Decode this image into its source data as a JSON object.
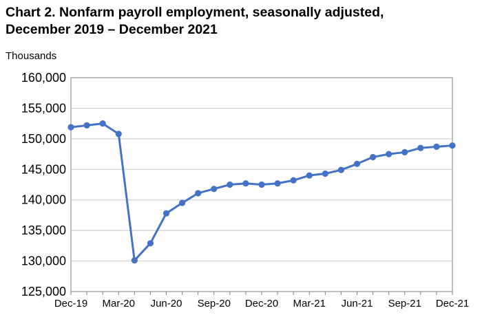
{
  "chart_data": {
    "type": "line",
    "title_line1": "Chart 2. Nonfarm payroll employment, seasonally adjusted,",
    "title_line2": "December 2019 – December 2021",
    "ylabel": "Thousands",
    "xlabel": "",
    "ylim": [
      125000,
      160000
    ],
    "y_ticks": [
      125000,
      130000,
      135000,
      140000,
      145000,
      150000,
      155000,
      160000
    ],
    "y_tick_labels": [
      "125,000",
      "130,000",
      "135,000",
      "140,000",
      "145,000",
      "150,000",
      "155,000",
      "160,000"
    ],
    "x_tick_labels": [
      "Dec-19",
      "Mar-20",
      "Jun-20",
      "Sep-20",
      "Dec-20",
      "Mar-21",
      "Jun-21",
      "Sep-21",
      "Dec-21"
    ],
    "x_tick_every": 3,
    "grid": true,
    "legend": "none",
    "line_color": "#4472C4",
    "series": [
      {
        "x": [
          "Dec-19",
          "Jan-20",
          "Feb-20",
          "Mar-20",
          "Apr-20",
          "May-20",
          "Jun-20",
          "Jul-20",
          "Aug-20",
          "Sep-20",
          "Oct-20",
          "Nov-20",
          "Dec-20",
          "Jan-21",
          "Feb-21",
          "Mar-21",
          "Apr-21",
          "May-21",
          "Jun-21",
          "Jul-21",
          "Aug-21",
          "Sep-21",
          "Oct-21",
          "Nov-21",
          "Dec-21"
        ],
        "values": [
          151900,
          152200,
          152500,
          150800,
          130100,
          132900,
          137800,
          139500,
          141100,
          141800,
          142500,
          142700,
          142500,
          142700,
          143200,
          144000,
          144300,
          144900,
          145900,
          147000,
          147500,
          147800,
          148500,
          148700,
          148900
        ]
      }
    ]
  }
}
